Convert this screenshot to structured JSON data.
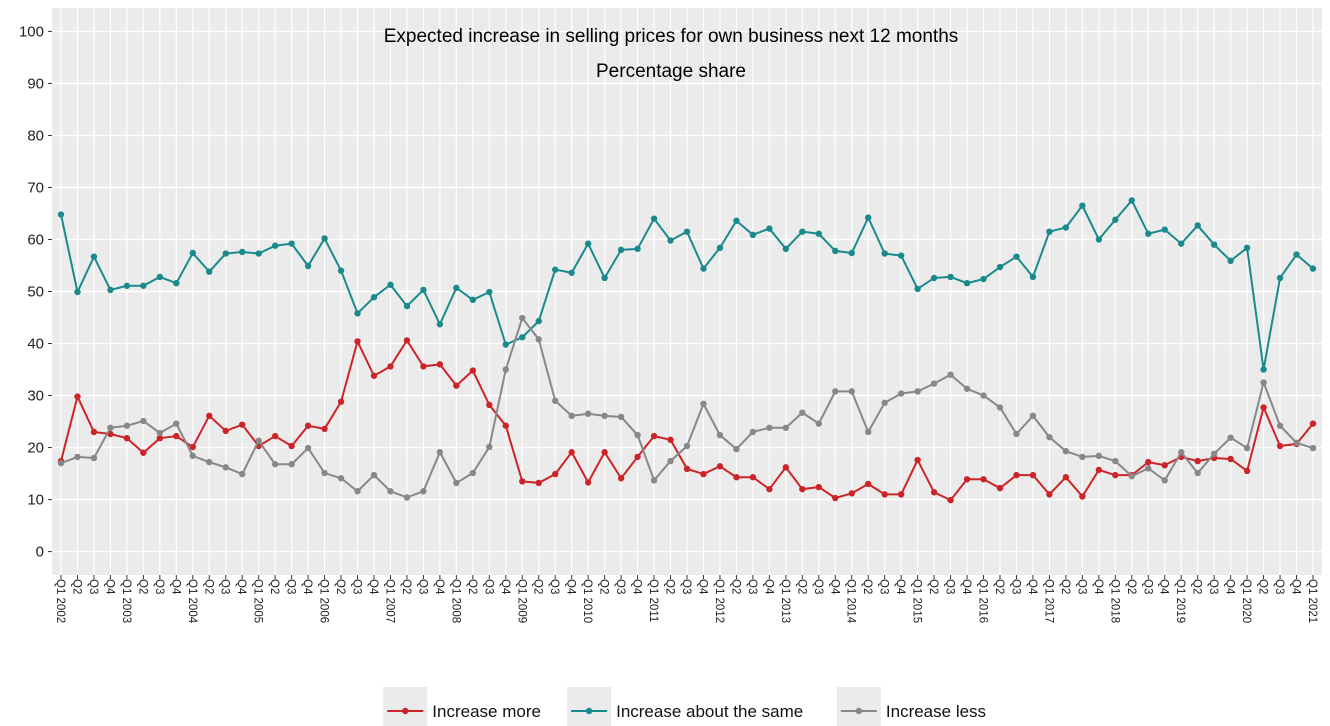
{
  "chart_data": {
    "type": "line",
    "title": "Expected increase in selling prices for own business next 12 months",
    "subtitle": "Percentage share",
    "categories": [
      "Q1 2002",
      "Q2",
      "Q3",
      "Q4",
      "Q1 2003",
      "Q2",
      "Q3",
      "Q4",
      "Q1 2004",
      "Q2",
      "Q3",
      "Q4",
      "Q1 2005",
      "Q2",
      "Q3",
      "Q4",
      "Q1 2006",
      "Q2",
      "Q3",
      "Q4",
      "Q1 2007",
      "Q2",
      "Q3",
      "Q4",
      "Q1 2008",
      "Q2",
      "Q3",
      "Q4",
      "Q1 2009",
      "Q2",
      "Q3",
      "Q4",
      "Q1 2010",
      "Q2",
      "Q3",
      "Q4",
      "Q1 2011",
      "Q2",
      "Q3",
      "Q4",
      "Q1 2012",
      "Q2",
      "Q3",
      "Q4",
      "Q1 2013",
      "Q2",
      "Q3",
      "Q4",
      "Q1 2014",
      "Q2",
      "Q3",
      "Q4",
      "Q1 2015",
      "Q2",
      "Q3",
      "Q4",
      "Q1 2016",
      "Q2",
      "Q3",
      "Q4",
      "Q1 2017",
      "Q2",
      "Q3",
      "Q4",
      "Q1 2018",
      "Q2",
      "Q3",
      "Q4",
      "Q1 2019",
      "Q2",
      "Q3",
      "Q4",
      "Q1 2020",
      "Q2",
      "Q3",
      "Q4",
      "Q1 2021"
    ],
    "series": [
      {
        "name": "Increase more",
        "color": "#cc2529",
        "values": [
          17.4,
          29.8,
          23,
          22.6,
          21.8,
          19,
          21.8,
          22.2,
          20.1,
          26.1,
          23.2,
          24.4,
          20.3,
          22.2,
          20.3,
          24.2,
          23.6,
          28.8,
          40.4,
          33.8,
          35.6,
          40.6,
          35.6,
          36,
          31.9,
          34.8,
          28.2,
          24.2,
          13.5,
          13.2,
          14.9,
          19.1,
          13.3,
          19.1,
          14.1,
          18.2,
          22.2,
          21.5,
          15.9,
          14.9,
          16.4,
          14.3,
          14.3,
          12,
          16.2,
          12,
          12.4,
          10.3,
          11.2,
          13,
          11,
          11,
          17.6,
          11.4,
          9.9,
          13.9,
          13.9,
          12.2,
          14.7,
          14.7,
          11,
          14.3,
          10.6,
          15.7,
          14.7,
          14.7,
          17.2,
          16.6,
          18.2,
          17.4,
          18,
          17.8,
          15.5,
          27.7,
          20.3,
          20.7,
          24.6
        ]
      },
      {
        "name": "Increase about the same",
        "color": "#1a8a8c",
        "values": [
          64.8,
          49.9,
          56.7,
          50.3,
          51.1,
          51.1,
          52.8,
          51.6,
          57.4,
          53.8,
          57.3,
          57.6,
          57.3,
          58.8,
          59.2,
          54.9,
          60.2,
          54,
          45.8,
          48.9,
          51.3,
          47.2,
          50.3,
          43.7,
          50.7,
          48.4,
          49.9,
          39.8,
          41.2,
          44.3,
          54.2,
          53.6,
          59.2,
          52.6,
          58,
          58.2,
          64,
          59.8,
          61.5,
          54.4,
          58.4,
          63.6,
          60.9,
          62.1,
          58.2,
          61.5,
          61.1,
          57.8,
          57.4,
          64.2,
          57.3,
          56.9,
          50.5,
          52.6,
          52.8,
          51.6,
          52.4,
          54.7,
          56.7,
          52.8,
          61.5,
          62.3,
          66.5,
          60,
          63.8,
          67.5,
          61.1,
          61.9,
          59.2,
          62.7,
          59,
          55.9,
          58.4,
          35,
          52.6,
          57.1,
          54.4
        ]
      },
      {
        "name": "Increase less",
        "color": "#888888",
        "values": [
          17,
          18.2,
          18,
          23.8,
          24.2,
          25.1,
          22.8,
          24.6,
          18.4,
          17.2,
          16.2,
          14.9,
          21.3,
          16.8,
          16.8,
          19.9,
          15.1,
          14.1,
          11.6,
          14.7,
          11.6,
          10.4,
          11.6,
          19.1,
          13.2,
          15.1,
          20.1,
          35,
          44.9,
          40.8,
          29,
          26.1,
          26.5,
          26.1,
          25.9,
          22.4,
          13.7,
          17.4,
          20.3,
          28.4,
          22.4,
          19.7,
          23,
          23.8,
          23.8,
          26.7,
          24.6,
          30.8,
          30.8,
          23,
          28.6,
          30.4,
          30.8,
          32.3,
          34,
          31.3,
          30,
          27.7,
          22.6,
          26.1,
          22,
          19.3,
          18.2,
          18.4,
          17.4,
          14.5,
          16,
          13.7,
          19.1,
          15.1,
          18.8,
          21.9,
          19.9,
          32.5,
          24.2,
          20.9,
          19.9
        ]
      }
    ],
    "ylim": [
      -4.5,
      104.5
    ],
    "yticks": [
      0,
      10,
      20,
      30,
      40,
      50,
      60,
      70,
      80,
      90,
      100
    ],
    "grid": true,
    "legend": "bottom"
  }
}
